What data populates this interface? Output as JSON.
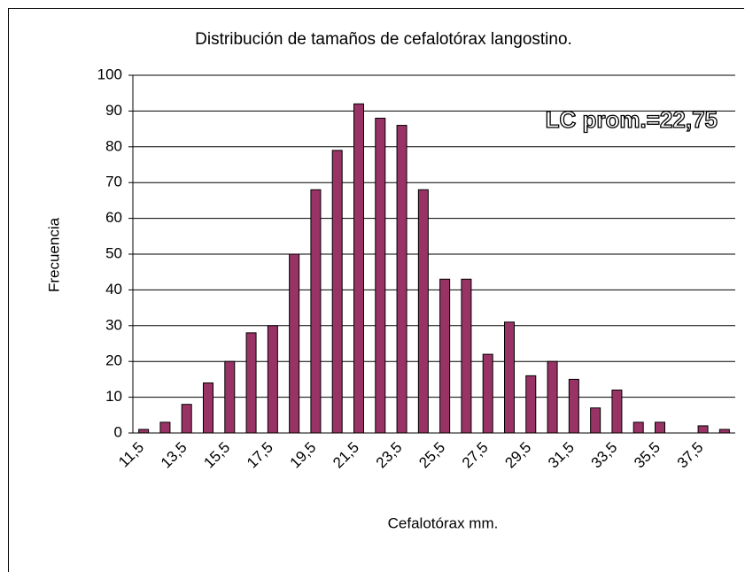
{
  "chart_data": {
    "type": "bar",
    "title": "Distribución de tamaños de cefalotórax langostino.",
    "x_label": "Cefalotórax mm.",
    "y_label": "Frecuencia",
    "annotation": "LC prom.=22,75",
    "categories": [
      "11,5",
      null,
      "13,5",
      null,
      "15,5",
      null,
      "17,5",
      null,
      "19,5",
      null,
      "21,5",
      null,
      "23,5",
      null,
      "25,5",
      null,
      "27,5",
      null,
      "29,5",
      null,
      "31,5",
      null,
      "33,5",
      null,
      "35,5",
      null,
      "37,5",
      null
    ],
    "values": [
      1,
      3,
      8,
      14,
      20,
      28,
      30,
      50,
      68,
      79,
      92,
      88,
      86,
      68,
      43,
      43,
      22,
      31,
      16,
      20,
      15,
      7,
      12,
      3,
      3,
      0,
      2,
      1
    ],
    "color": "#993366",
    "ylim": [
      0,
      100
    ],
    "yticks": [
      0,
      10,
      20,
      30,
      40,
      50,
      60,
      70,
      80,
      90,
      100
    ],
    "grid": true
  }
}
